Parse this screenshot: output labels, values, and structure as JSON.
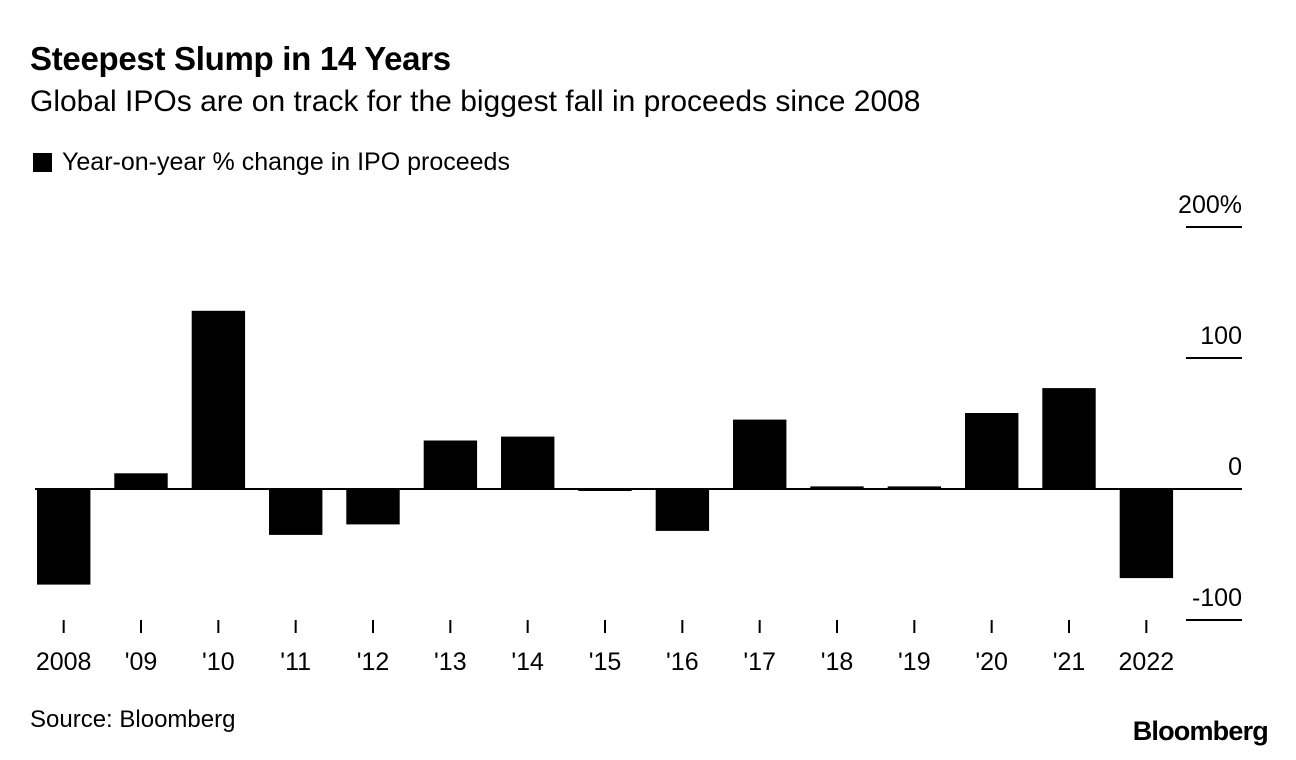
{
  "header": {
    "title": "Steepest Slump in 14 Years",
    "subtitle": "Global IPOs are on track for the biggest fall in proceeds since 2008"
  },
  "footer": {
    "source": "Source: Bloomberg",
    "logo": "Bloomberg"
  },
  "colors": {
    "bar": "#000000",
    "axis": "#000000",
    "background": "#ffffff"
  },
  "chart_data": {
    "type": "bar",
    "title": "Steepest Slump in 14 Years",
    "subtitle": "Global IPOs are on track for the biggest fall in proceeds since 2008",
    "legend": {
      "entries": [
        "Year-on-year % change in IPO proceeds"
      ],
      "position": "top-left"
    },
    "categories": [
      "2008",
      "'09",
      "'10",
      "'11",
      "'12",
      "'13",
      "'14",
      "'15",
      "'16",
      "'17",
      "'18",
      "'19",
      "'20",
      "'21",
      "2022"
    ],
    "series": [
      {
        "name": "Year-on-year % change in IPO proceeds",
        "values": [
          -73,
          12,
          136,
          -35,
          -27,
          37,
          40,
          -1,
          -32,
          53,
          2,
          2,
          58,
          77,
          -68
        ]
      }
    ],
    "y_axis": {
      "position": "right",
      "ylim": [
        -100,
        200
      ],
      "ticks": [
        200,
        100,
        0,
        -100
      ],
      "tick_labels": [
        "200%",
        "100",
        "0",
        "-100"
      ]
    },
    "xlabel": "",
    "ylabel": "",
    "grid": false
  }
}
